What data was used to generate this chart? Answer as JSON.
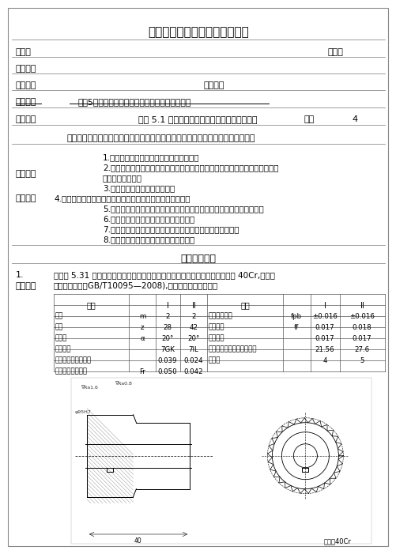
{
  "title": "《机械制造工艺》教学设计方案",
  "teacher_label": "教师：",
  "seq_label": "序号：",
  "time_label": "授课时间",
  "class_label": "授课班级",
  "place_label": "上课地点",
  "project_label": "所属项目",
  "project_value": "项目5圆柱齿轮零件机械加工工艺规程编制与实施",
  "task_label": "学习任务",
  "task_value": "任务 5.1 直齿圆柱齿轮加工工艺规程编制与实施",
  "class_hour_label": "课时",
  "class_hour_value": "4",
  "final_goal": "最终目标能合理编制圆柱齿轮零件的机械加工工艺规程并实施，加工出合格的零件",
  "teaching_goals_label": "教学目标",
  "promote_label": "促成目标",
  "goals_line1": "1.能正确分析圆柱齿轮零件结构和技术要求",
  "goals_line2a": "2.能根据实际生产需要合理选用设备、工装；合理选择金属切削加工参数，进行",
  "goals_line2b": "齿坏、齿廓等加工",
  "goals_line3": "3.能合理进行齿轮零件精度检验",
  "goals_line4": "4.能考虑加工成本，对零件的机械加工工艺过程进行优化设计",
  "goals_line5": "5.能合理编制齿轮零件的机械加工工艺规程，正确填写机械加工工艺文件",
  "goals_line6": "6.能查阅并贯彻相关国家标准和行业标准",
  "goals_line7": "7.能明确齿轮加工设备的常规维护与保养，执行安全文明生产",
  "goals_line8": "8.能注重培养学生的职业素养与良好习惯",
  "process_title": "教学过程设计",
  "task_num": "1.",
  "task_intro_label": "任务引入",
  "task_intro_1": "编制图 5.31 所示的双联圆柱齿轮零件的机械加工工艺规程并实施，零件材料为 40Cr,精度等",
  "task_intro_2": "级为７７７级（GB/T10095—2008),生产类型为成批生产。",
  "table_rows": [
    [
      "模数",
      "m",
      "2",
      "2",
      "基节极限偏差",
      "fpb",
      "±0.016",
      "±0.016"
    ],
    [
      "齿数",
      "z",
      "28",
      "42",
      "齿形公差",
      "ff",
      "0.017",
      "0.018"
    ],
    [
      "齿形角",
      "α",
      "20°",
      "20°",
      "齿向公差",
      "",
      "0.017",
      "0.017"
    ],
    [
      "精度等级",
      "",
      "7GK",
      "7IL",
      "公法线平均长度及极限偏差",
      "",
      "21.56",
      "27.6"
    ],
    [
      "公法线长度变动公差",
      "",
      "0.039",
      "0.024",
      "齿面数",
      "",
      "4",
      "5"
    ],
    [
      "齿圈径向跳动公差",
      "Fr",
      "0.050",
      "0.042",
      "",
      "",
      "",
      ""
    ]
  ]
}
